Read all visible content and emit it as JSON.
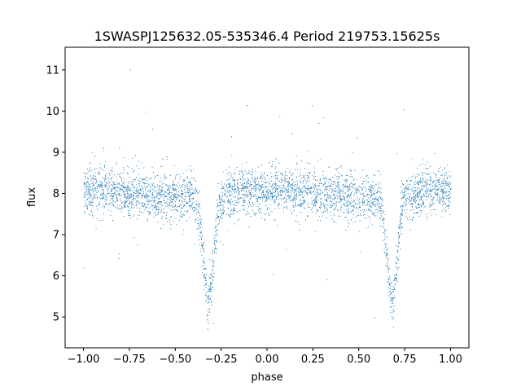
{
  "chart_data": {
    "type": "scatter",
    "title": "1SWASPJ125632.05-535346.4 Period 219753.15625s",
    "xlabel": "phase",
    "ylabel": "flux",
    "xlim": [
      -1.1,
      1.1
    ],
    "ylim": [
      4.25,
      11.55
    ],
    "xticks": [
      -1.0,
      -0.75,
      -0.5,
      -0.25,
      0.0,
      0.25,
      0.5,
      0.75,
      1.0
    ],
    "xtick_labels": [
      "−1.00",
      "−0.75",
      "−0.50",
      "−0.25",
      "0.00",
      "0.25",
      "0.50",
      "0.75",
      "1.00"
    ],
    "yticks": [
      5,
      6,
      7,
      8,
      9,
      10,
      11
    ],
    "ytick_labels": [
      "5",
      "6",
      "7",
      "8",
      "9",
      "10",
      "11"
    ],
    "grid": false,
    "point_color": "#1f77b4",
    "series": [
      {
        "phase_range": [
          -1.0,
          1.0
        ],
        "baseline_flux": 8.0,
        "eclipses": [
          {
            "center_phase": -0.32,
            "min_flux": 5.5
          },
          {
            "center_phase": 0.68,
            "min_flux": 5.5
          }
        ],
        "points": [
          [
            -1.0,
            8.0
          ],
          [
            -0.9,
            8.05
          ],
          [
            -0.8,
            8.1
          ],
          [
            -0.7,
            8.05
          ],
          [
            -0.6,
            8.0
          ],
          [
            -0.5,
            7.95
          ],
          [
            -0.45,
            7.8
          ],
          [
            -0.4,
            7.4
          ],
          [
            -0.36,
            6.6
          ],
          [
            -0.34,
            6.0
          ],
          [
            -0.32,
            5.5
          ],
          [
            -0.3,
            6.0
          ],
          [
            -0.28,
            6.8
          ],
          [
            -0.25,
            7.6
          ],
          [
            -0.2,
            7.9
          ],
          [
            -0.1,
            8.0
          ],
          [
            0.0,
            8.0
          ],
          [
            0.1,
            8.05
          ],
          [
            0.2,
            8.1
          ],
          [
            0.3,
            8.05
          ],
          [
            0.4,
            8.0
          ],
          [
            0.5,
            7.95
          ],
          [
            0.55,
            7.8
          ],
          [
            0.6,
            7.4
          ],
          [
            0.64,
            6.6
          ],
          [
            0.66,
            6.0
          ],
          [
            0.68,
            5.5
          ],
          [
            0.7,
            6.0
          ],
          [
            0.72,
            6.8
          ],
          [
            0.75,
            7.6
          ],
          [
            0.8,
            7.9
          ],
          [
            0.9,
            8.0
          ],
          [
            1.0,
            8.0
          ]
        ]
      }
    ]
  }
}
